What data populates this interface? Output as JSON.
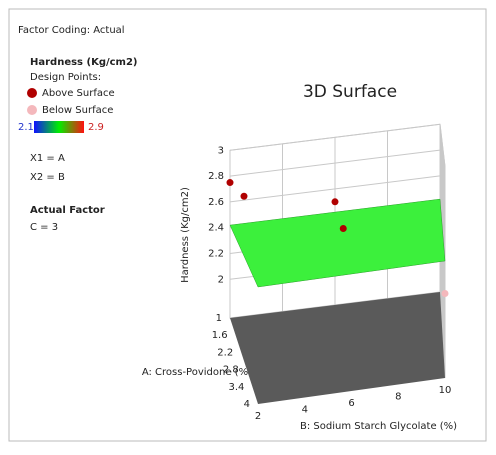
{
  "chart_data": {
    "type": "surface3d",
    "title": "3D Surface",
    "factor_coding": "Factor Coding: Actual",
    "legend": {
      "title": "Hardness (Kg/cm2)",
      "subtitle": "Design Points:",
      "above": "Above Surface",
      "below": "Below Surface",
      "above_color": "#b00000",
      "below_color": "#f4b8bc"
    },
    "colorbar": {
      "min": 2.1,
      "max": 2.9,
      "colors": [
        "#1010ff",
        "#00ee00",
        "#ff1010"
      ]
    },
    "factor_map": [
      "X1 = A",
      "X2 = B"
    ],
    "actual_factor": {
      "title": "Actual Factor",
      "text": "C = 3"
    },
    "xlabel": "A: Cross-Povidone (%)",
    "ylabel": "B: Sodium Starch Glycolate (%)",
    "zlabel": "Hardness (Kg/cm2)",
    "xlim": [
      1,
      4
    ],
    "xticks": [
      1,
      1.6,
      2.2,
      2.8,
      3.4,
      4
    ],
    "ylim": [
      2,
      10
    ],
    "yticks": [
      2,
      4,
      6,
      8,
      10
    ],
    "zlim": [
      1.7,
      3
    ],
    "zticks": [
      2,
      2.2,
      2.4,
      2.6,
      2.8,
      3
    ],
    "surface": {
      "color": "#3cf03c",
      "z": [
        [
          2.42,
          2.42
        ],
        [
          2.42,
          2.42
        ]
      ]
    },
    "floor_color": "#5a5a5a",
    "points": [
      {
        "A": 1,
        "B": 2,
        "z": 2.75,
        "side": "above"
      },
      {
        "A": 2.5,
        "B": 2,
        "z": 2.83,
        "side": "above"
      },
      {
        "A": 1,
        "B": 6,
        "z": 2.5,
        "side": "above"
      },
      {
        "A": 2.5,
        "B": 6,
        "z": 2.52,
        "side": "above"
      },
      {
        "A": 4,
        "B": 10,
        "z": 2.22,
        "side": "below"
      }
    ]
  }
}
